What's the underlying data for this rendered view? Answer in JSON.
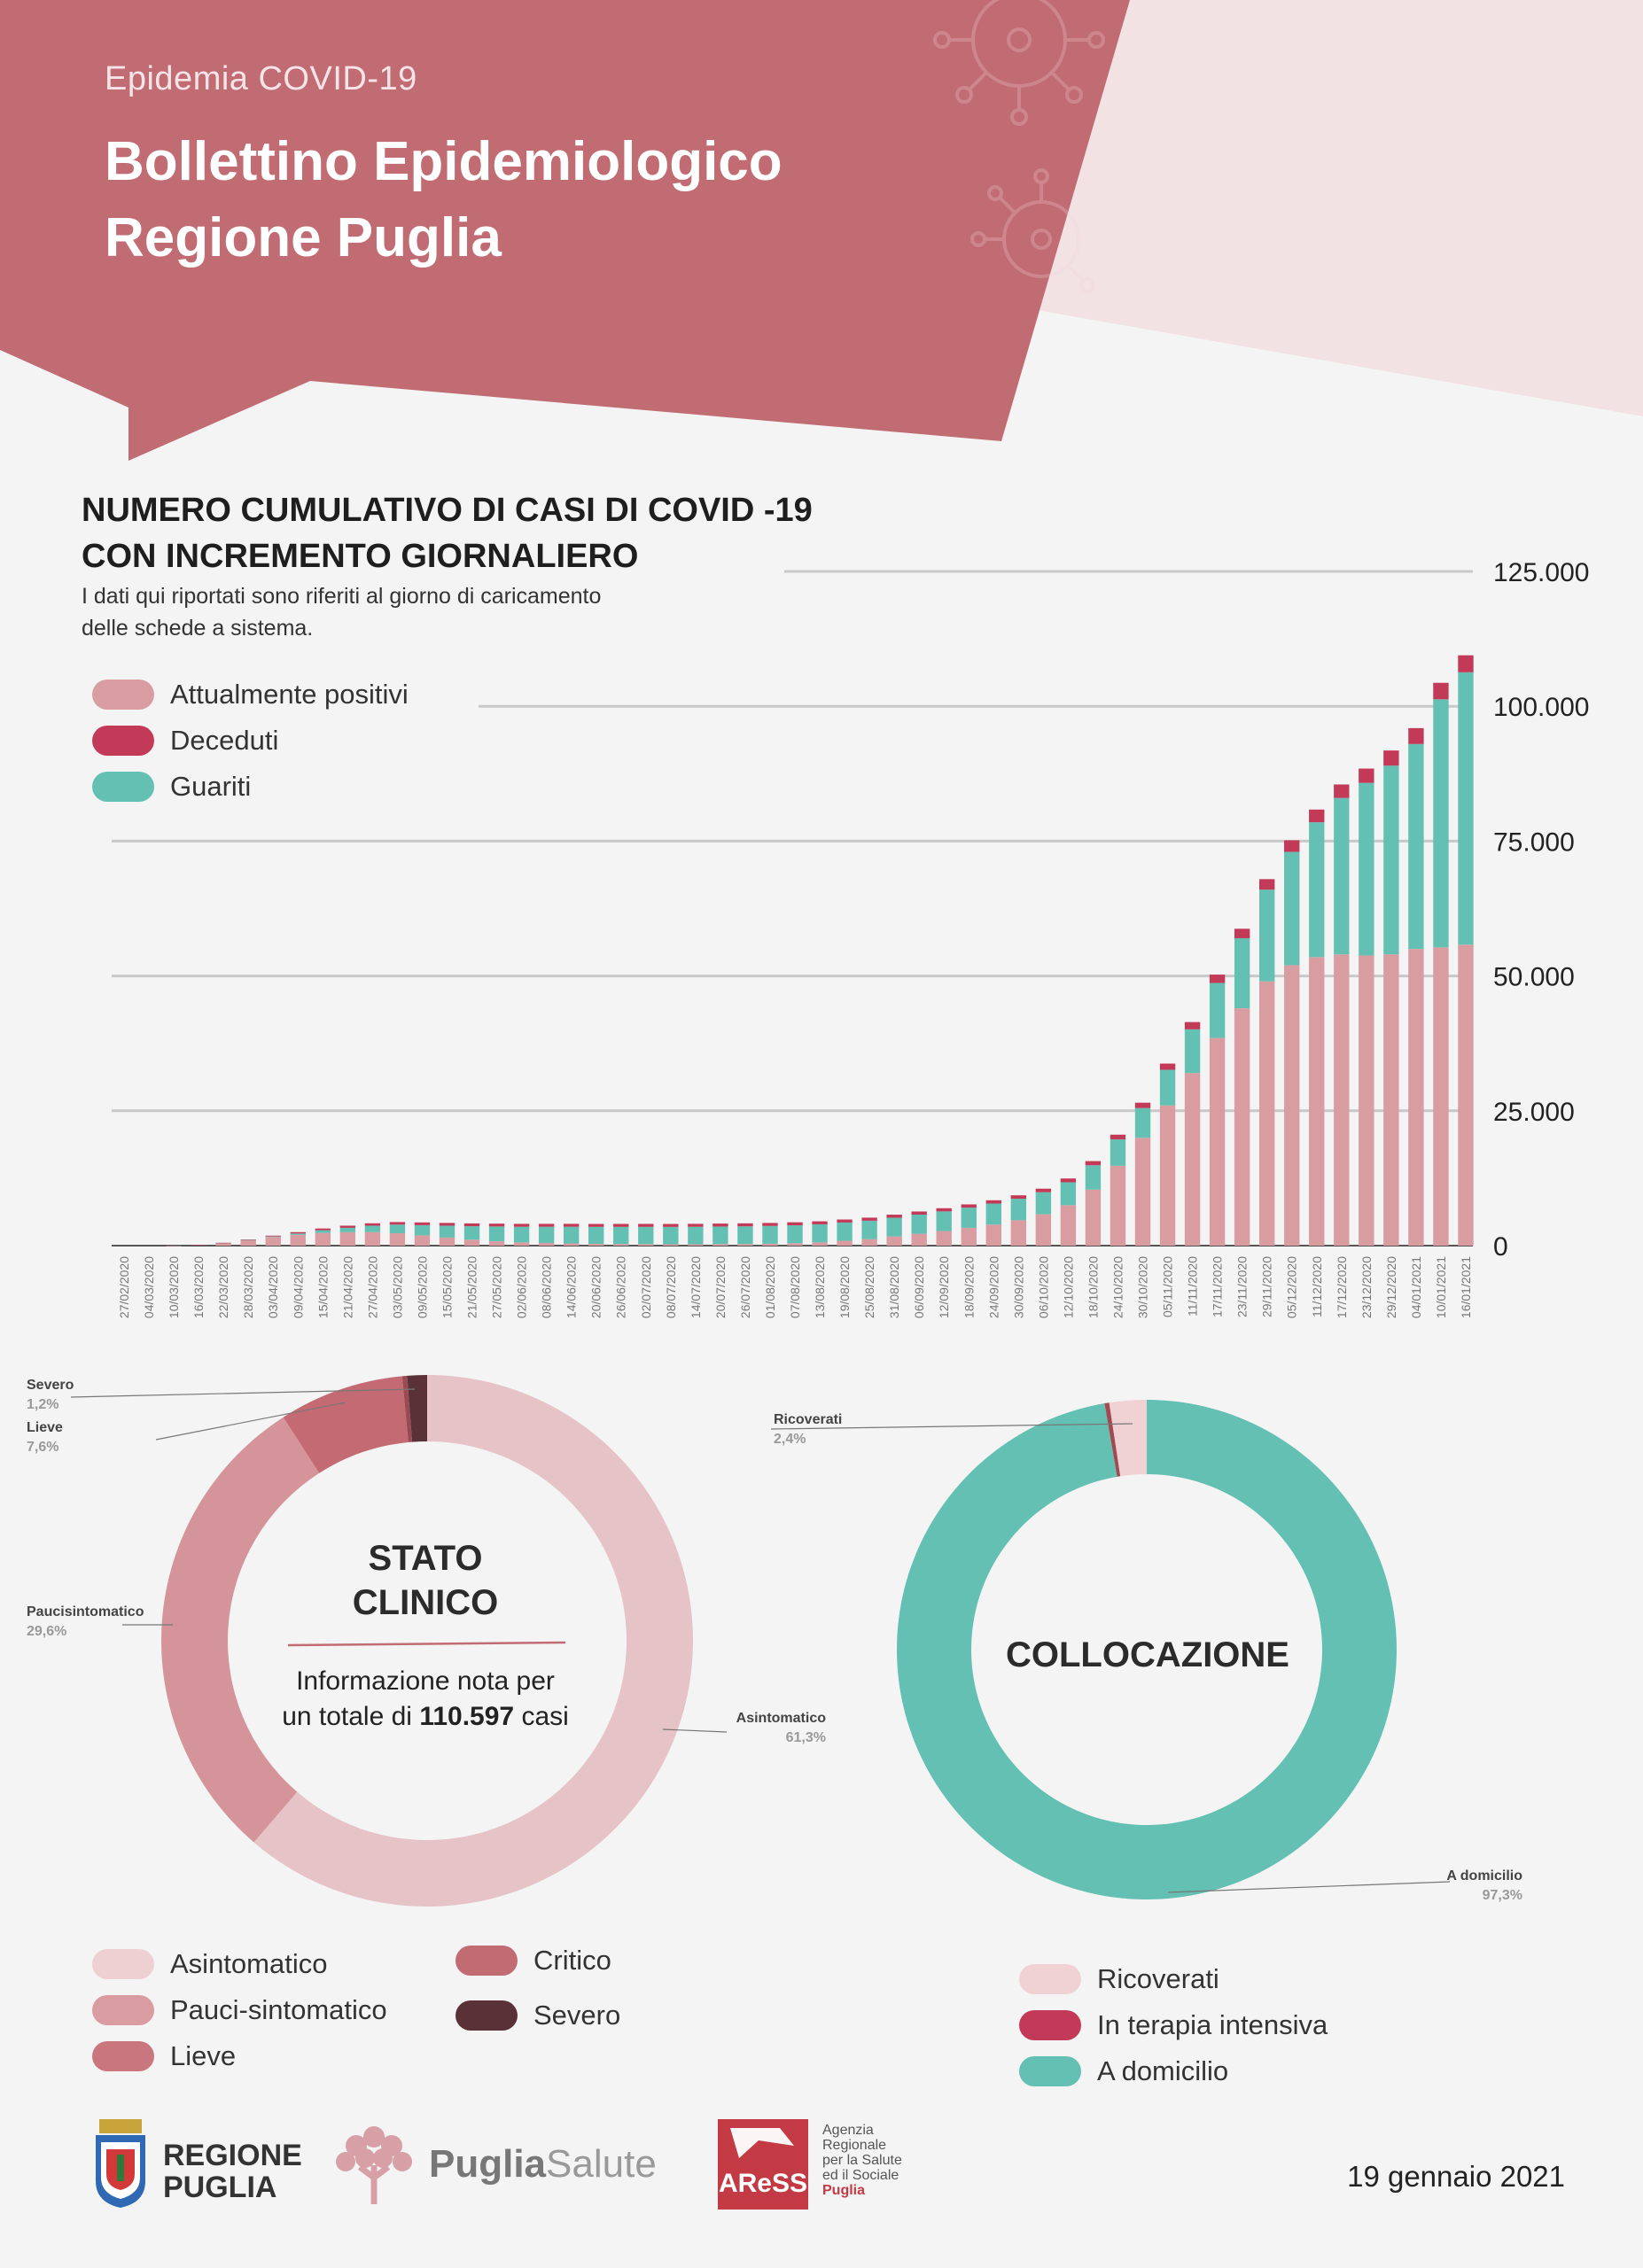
{
  "header": {
    "subtitle": "Epidemia COVID-19",
    "title_line1": "Bollettino Epidemiologico",
    "title_line2": "Regione Puglia"
  },
  "colors": {
    "banner": "#c16b73",
    "positivi": "#d89ca1",
    "deceduti": "#c33a58",
    "guariti": "#64c0b3",
    "asintomatico": "#e8c4c7",
    "pauci": "#d49499",
    "lieve": "#c46a73",
    "critico": "#b8636b",
    "severo": "#5a3136",
    "ricoverati": "#f0d2d4",
    "terapia_intensiva": "#c33a58",
    "domicilio": "#64c0b3"
  },
  "cumulative_chart": {
    "title_line1": "NUMERO CUMULATIVO DI CASI DI COVID -19",
    "title_line2": "CON INCREMENTO GIORNALIERO",
    "note_line1": "I dati qui riportati sono riferiti al giorno di caricamento",
    "note_line2": "delle schede a sistema.",
    "legend": [
      {
        "label": "Attualmente positivi",
        "color": "#d89ca1"
      },
      {
        "label": "Deceduti",
        "color": "#c33a58"
      },
      {
        "label": "Guariti",
        "color": "#64c0b3"
      }
    ],
    "y_ticks": [
      "125.000",
      "100.000",
      "75.000",
      "50.000",
      "25.000",
      "0"
    ],
    "x_ticks": [
      "27/02/2020",
      "04/03/2020",
      "10/03/2020",
      "16/03/2020",
      "22/03/2020",
      "28/03/2020",
      "03/04/2020",
      "09/04/2020",
      "15/04/2020",
      "21/04/2020",
      "27/04/2020",
      "03/05/2020",
      "09/05/2020",
      "15/05/2020",
      "21/05/2020",
      "27/05/2020",
      "02/06/2020",
      "08/06/2020",
      "14/06/2020",
      "20/06/2020",
      "26/06/2020",
      "02/07/2020",
      "08/07/2020",
      "14/07/2020",
      "20/07/2020",
      "26/07/2020",
      "01/08/2020",
      "07/08/2020",
      "13/08/2020",
      "19/08/2020",
      "25/08/2020",
      "31/08/2020",
      "06/09/2020",
      "12/09/2020",
      "18/09/2020",
      "24/09/2020",
      "30/09/2020",
      "06/10/2020",
      "12/10/2020",
      "18/10/2020",
      "24/10/2020",
      "30/10/2020",
      "05/11/2020",
      "11/11/2020",
      "17/11/2020",
      "23/11/2020",
      "29/11/2020",
      "05/12/2020",
      "11/12/2020",
      "17/12/2020",
      "23/12/2020",
      "29/12/2020",
      "04/01/2021",
      "10/01/2021",
      "16/01/2021"
    ]
  },
  "chart_data": [
    {
      "type": "bar",
      "stacked": true,
      "title": "NUMERO CUMULATIVO DI CASI DI COVID -19 CON INCREMENTO GIORNALIERO",
      "ylim": [
        0,
        125000
      ],
      "grid": true,
      "legend_position": "top-left",
      "categories": [
        "27/02/2020",
        "04/03/2020",
        "10/03/2020",
        "16/03/2020",
        "22/03/2020",
        "28/03/2020",
        "03/04/2020",
        "09/04/2020",
        "15/04/2020",
        "21/04/2020",
        "27/04/2020",
        "03/05/2020",
        "09/05/2020",
        "15/05/2020",
        "21/05/2020",
        "27/05/2020",
        "02/06/2020",
        "08/06/2020",
        "14/06/2020",
        "20/06/2020",
        "26/06/2020",
        "02/07/2020",
        "08/07/2020",
        "14/07/2020",
        "20/07/2020",
        "26/07/2020",
        "01/08/2020",
        "07/08/2020",
        "13/08/2020",
        "19/08/2020",
        "25/08/2020",
        "31/08/2020",
        "06/09/2020",
        "12/09/2020",
        "18/09/2020",
        "24/09/2020",
        "30/09/2020",
        "06/10/2020",
        "12/10/2020",
        "18/10/2020",
        "24/10/2020",
        "30/10/2020",
        "05/11/2020",
        "11/11/2020",
        "17/11/2020",
        "23/11/2020",
        "29/11/2020",
        "05/12/2020",
        "11/12/2020",
        "17/12/2020",
        "23/12/2020",
        "29/12/2020",
        "04/01/2021",
        "10/01/2021",
        "16/01/2021"
      ],
      "series": [
        {
          "name": "Attualmente positivi",
          "values": [
            0,
            0,
            10,
            80,
            500,
            1050,
            1600,
            2000,
            2350,
            2500,
            2500,
            2300,
            1900,
            1500,
            1100,
            800,
            600,
            500,
            400,
            330,
            300,
            280,
            250,
            250,
            280,
            300,
            350,
            450,
            600,
            900,
            1200,
            1700,
            2200,
            2700,
            3300,
            3900,
            4700,
            5800,
            7500,
            10400,
            14800,
            20000,
            26000,
            32000,
            38500,
            44000,
            49000,
            52000,
            53500,
            54000,
            53800,
            54000,
            55000,
            55300,
            55800
          ]
        },
        {
          "name": "Deceduti",
          "values": [
            0,
            0,
            0,
            2,
            15,
            60,
            150,
            250,
            330,
            400,
            440,
            470,
            500,
            510,
            520,
            530,
            535,
            540,
            543,
            545,
            547,
            550,
            550,
            551,
            552,
            553,
            555,
            558,
            560,
            563,
            567,
            572,
            578,
            585,
            595,
            610,
            630,
            660,
            700,
            770,
            870,
            1000,
            1150,
            1350,
            1550,
            1750,
            1950,
            2150,
            2350,
            2500,
            2650,
            2800,
            2950,
            3050,
            3150
          ]
        },
        {
          "name": "Guariti",
          "values": [
            0,
            0,
            0,
            0,
            5,
            30,
            100,
            250,
            500,
            800,
            1200,
            1600,
            1900,
            2200,
            2500,
            2750,
            2900,
            3000,
            3100,
            3150,
            3180,
            3200,
            3220,
            3240,
            3260,
            3280,
            3300,
            3320,
            3350,
            3380,
            3420,
            3470,
            3550,
            3650,
            3750,
            3900,
            4000,
            4100,
            4250,
            4500,
            4900,
            5500,
            6600,
            8100,
            10200,
            13000,
            17000,
            21000,
            25000,
            29000,
            32000,
            35000,
            38000,
            46000,
            50500
          ]
        }
      ]
    },
    {
      "type": "pie",
      "title": "STATO CLINICO",
      "labels": [
        "Asintomatico",
        "Paucisintomatico",
        "Lieve",
        "Critico",
        "Severo"
      ],
      "values": [
        61.3,
        29.6,
        7.6,
        0.3,
        1.2
      ]
    },
    {
      "type": "pie",
      "title": "COLLOCAZIONE",
      "labels": [
        "A domicilio",
        "In terapia intensiva",
        "Ricoverati"
      ],
      "values": [
        97.3,
        0.3,
        2.4
      ]
    }
  ],
  "stato_clinico": {
    "title_line1": "STATO",
    "title_line2": "CLINICO",
    "note_line1": "Informazione nota per",
    "note_prefix": "un totale di",
    "note_number": "110.597",
    "note_suffix": "casi",
    "callouts": {
      "severo_label": "Severo",
      "severo_pct": "1,2%",
      "lieve_label": "Lieve",
      "lieve_pct": "7,6%",
      "pauci_label": "Paucisintomatico",
      "pauci_pct": "29,6%",
      "asinto_label": "Asintomatico",
      "asinto_pct": "61,3%"
    },
    "legend_col1": [
      {
        "label": "Asintomatico",
        "color": "#efd0d2"
      },
      {
        "label": "Pauci-sintomatico",
        "color": "#d89ca1"
      },
      {
        "label": "Lieve",
        "color": "#c9767e"
      }
    ],
    "legend_col2": [
      {
        "label": "Critico",
        "color": "#c16b73"
      },
      {
        "label": "Severo",
        "color": "#5a3136"
      }
    ]
  },
  "collocazione": {
    "title": "COLLOCAZIONE",
    "callouts": {
      "ricoverati_label": "Ricoverati",
      "ricoverati_pct": "2,4%",
      "domicilio_label": "A domicilio",
      "domicilio_pct": "97,3%"
    },
    "legend": [
      {
        "label": "Ricoverati",
        "color": "#f0d2d4"
      },
      {
        "label": "In terapia intensiva",
        "color": "#c33a58"
      },
      {
        "label": "A domicilio",
        "color": "#64c0b3"
      }
    ]
  },
  "footer": {
    "regione_line1": "REGIONE",
    "regione_line2": "PUGLIA",
    "puglia": "Puglia",
    "salute": "Salute",
    "aress_logo": "AReSS",
    "aress_line1": "Agenzia",
    "aress_line2": "Regionale",
    "aress_line3": "per la Salute",
    "aress_line4": "ed il Sociale",
    "aress_line5": "Puglia",
    "date": "19 gennaio 2021"
  }
}
